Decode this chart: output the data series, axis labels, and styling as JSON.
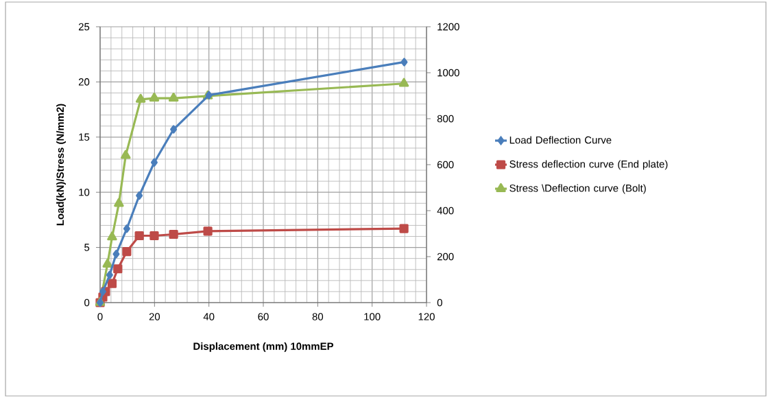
{
  "chart_data": {
    "type": "line",
    "xlabel": "Displacement (mm) 10mmEP",
    "ylabel": "Load(kN)/Stress (N/mm2)",
    "xlim": [
      0,
      120
    ],
    "xticks": [
      0,
      20,
      40,
      60,
      80,
      100,
      120
    ],
    "ylim": [
      0,
      25
    ],
    "yticks": [
      0,
      5,
      10,
      15,
      20,
      25
    ],
    "y2lim": [
      0,
      1200
    ],
    "y2ticks": [
      0,
      200,
      400,
      600,
      800,
      1000,
      1200
    ],
    "grid": true,
    "legend": "right",
    "series": [
      {
        "name": "Load Deflection Curve",
        "color": "#4a7ebb",
        "marker": "diamond",
        "x": [
          0,
          1,
          3.5,
          5.9,
          9.8,
          14.4,
          19.9,
          27.0,
          40,
          111.8
        ],
        "values": [
          0,
          1,
          2.5,
          4.4,
          6.7,
          9.7,
          12.7,
          15.7,
          18.8,
          21.8
        ]
      },
      {
        "name": "Stress deflection curve (End plate)",
        "color": "#be4b48",
        "marker": "square",
        "axis": "y2",
        "x": [
          0,
          1,
          2,
          4.4,
          6.5,
          9.8,
          14.4,
          19.9,
          27.0,
          39.6,
          111.7
        ],
        "values": [
          0,
          24,
          48,
          83,
          147,
          222,
          291,
          291,
          297,
          311,
          322
        ]
      },
      {
        "name": "Stress \\Deflection curve (Bolt)",
        "color": "#98b954",
        "marker": "triangle",
        "axis": "y2",
        "x": [
          0,
          2.7,
          4.4,
          6.9,
          9.4,
          14.9,
          19.9,
          27.0,
          39.6,
          111.7
        ],
        "values": [
          0,
          167,
          285,
          431,
          640,
          884,
          889,
          889,
          899,
          953
        ]
      }
    ]
  }
}
